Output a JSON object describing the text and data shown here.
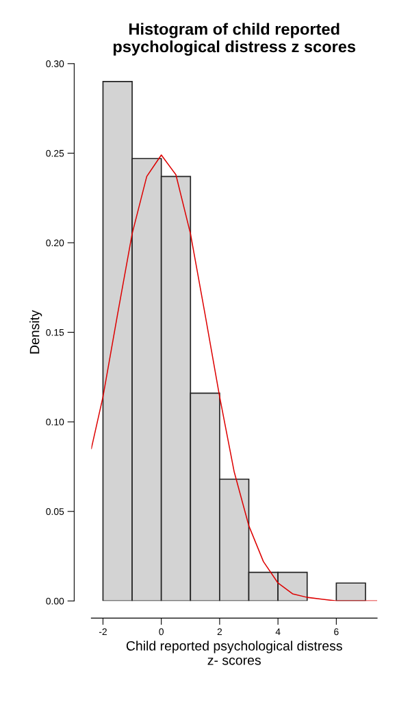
{
  "chart_data": {
    "type": "histogram",
    "title": "Histogram of child reported\npsychological distress z scores",
    "xlabel": "Child reported psychological distress\nz- scores",
    "ylabel": "Density",
    "bins": [
      -2,
      -1,
      0,
      1,
      2,
      3,
      4,
      5,
      6,
      7
    ],
    "values": [
      0.29,
      0.247,
      0.237,
      0.116,
      0.068,
      0.016,
      0.016,
      0,
      0.01
    ],
    "color": "#d3d3d3",
    "series": [
      {
        "type": "line",
        "color": "#dd0000",
        "x": [
          -2.4,
          -2,
          -1.5,
          -1,
          -0.5,
          0,
          0.5,
          1,
          1.5,
          2,
          2.5,
          3,
          3.5,
          4,
          4.5,
          5,
          5.5,
          6,
          7.4
        ],
        "values": [
          0.085,
          0.114,
          0.16,
          0.205,
          0.237,
          0.249,
          0.238,
          0.205,
          0.16,
          0.114,
          0.072,
          0.042,
          0.022,
          0.01,
          0.004,
          0.002,
          0.001,
          0,
          0
        ]
      }
    ],
    "xlim": [
      -2.4,
      7.4
    ],
    "ylim": [
      0,
      0.3
    ],
    "xticks": [
      -2,
      0,
      2,
      4,
      6
    ],
    "yticks": [
      {
        "value": 0,
        "label": "0.00"
      },
      {
        "value": 0.05,
        "label": "0.05"
      },
      {
        "value": 0.1,
        "label": "0.10"
      },
      {
        "value": 0.15,
        "label": "0.15"
      },
      {
        "value": 0.2,
        "label": "0.20"
      },
      {
        "value": 0.25,
        "label": "0.25"
      },
      {
        "value": 0.3,
        "label": "0.30"
      }
    ],
    "grid": false,
    "legend": false
  }
}
